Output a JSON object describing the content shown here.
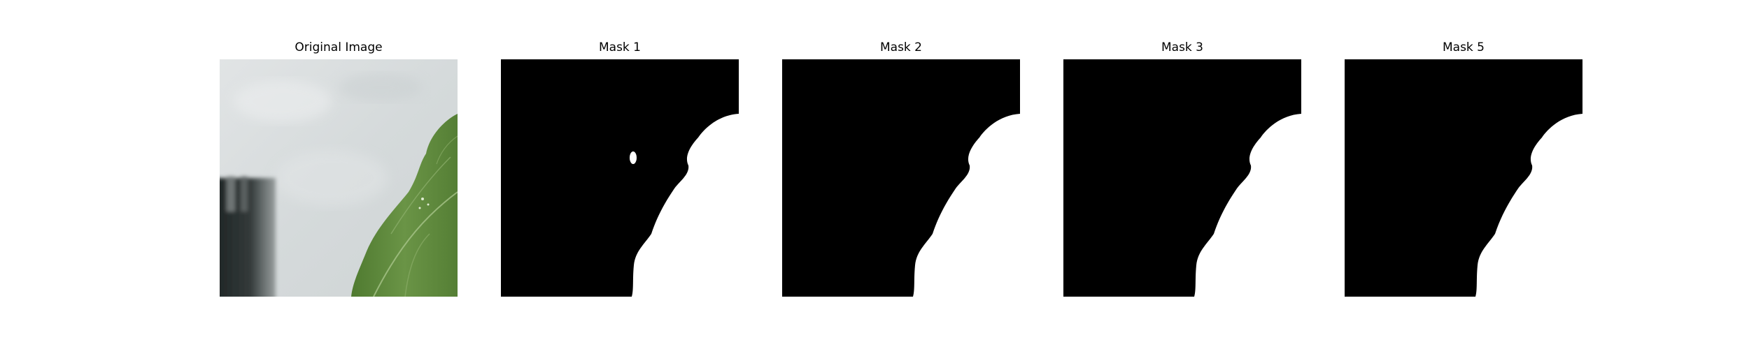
{
  "figure": {
    "panels": [
      {
        "title": "Original Image",
        "kind": "photo"
      },
      {
        "title": "Mask 1",
        "kind": "mask"
      },
      {
        "title": "Mask 2",
        "kind": "mask"
      },
      {
        "title": "Mask 3",
        "kind": "mask"
      },
      {
        "title": "Mask 5",
        "kind": "mask"
      }
    ]
  },
  "colors": {
    "mask_background": "#000000",
    "mask_foreground": "#ffffff",
    "photo_background": "#d9dddf",
    "leaf_green": "#5f8a3e",
    "bottle_dark": "#2b3030"
  }
}
